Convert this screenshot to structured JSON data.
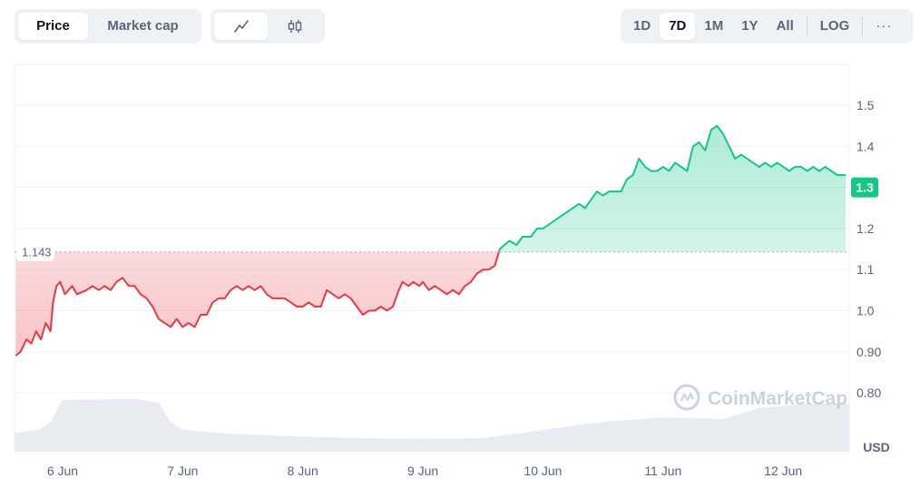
{
  "toolbar": {
    "metric_tabs": [
      {
        "label": "Price",
        "active": true
      },
      {
        "label": "Market cap",
        "active": false
      }
    ],
    "chart_type_tabs": [
      {
        "icon": "line-chart-icon",
        "active": true
      },
      {
        "icon": "candlestick-icon",
        "active": false
      }
    ],
    "range_tabs": [
      {
        "label": "1D",
        "active": false
      },
      {
        "label": "7D",
        "active": true
      },
      {
        "label": "1M",
        "active": false
      },
      {
        "label": "1Y",
        "active": false
      },
      {
        "label": "All",
        "active": false
      }
    ],
    "scale_label": "LOG",
    "more_label": "···"
  },
  "watermark": "CoinMarketCap",
  "chart_data": {
    "type": "area",
    "reference_value": 1.143,
    "reference_label": "1.143",
    "current_value": 1.3,
    "current_label": "1.3",
    "currency_label": "USD",
    "ylim": [
      0.7,
      1.6
    ],
    "y_ticks": [
      0.8,
      0.9,
      1.0,
      1.1,
      1.2,
      1.3,
      1.4,
      1.5
    ],
    "y_tick_labels": [
      "0.80",
      "0.90",
      "1.0",
      "1.1",
      "1.2",
      "1.3",
      "1.4",
      "1.5"
    ],
    "x_range": [
      5.6,
      12.55
    ],
    "x_ticks": [
      6,
      7,
      8,
      9,
      10,
      11,
      12
    ],
    "x_tick_labels": [
      "6 Jun",
      "7 Jun",
      "8 Jun",
      "9 Jun",
      "10 Jun",
      "11 Jun",
      "12 Jun"
    ],
    "colors": {
      "up": "#16c784",
      "down": "#ea3943",
      "volume": "#e8ebef",
      "grid": "#eff2f5"
    },
    "price": [
      [
        5.61,
        0.89
      ],
      [
        5.65,
        0.9
      ],
      [
        5.7,
        0.93
      ],
      [
        5.74,
        0.92
      ],
      [
        5.78,
        0.95
      ],
      [
        5.82,
        0.93
      ],
      [
        5.86,
        0.97
      ],
      [
        5.9,
        0.95
      ],
      [
        5.92,
        1.02
      ],
      [
        5.95,
        1.06
      ],
      [
        5.98,
        1.07
      ],
      [
        6.02,
        1.04
      ],
      [
        6.08,
        1.06
      ],
      [
        6.12,
        1.04
      ],
      [
        6.2,
        1.05
      ],
      [
        6.25,
        1.06
      ],
      [
        6.3,
        1.05
      ],
      [
        6.35,
        1.06
      ],
      [
        6.4,
        1.05
      ],
      [
        6.45,
        1.07
      ],
      [
        6.5,
        1.08
      ],
      [
        6.55,
        1.06
      ],
      [
        6.6,
        1.06
      ],
      [
        6.65,
        1.04
      ],
      [
        6.7,
        1.03
      ],
      [
        6.75,
        1.01
      ],
      [
        6.8,
        0.98
      ],
      [
        6.85,
        0.97
      ],
      [
        6.9,
        0.96
      ],
      [
        6.95,
        0.98
      ],
      [
        7.0,
        0.96
      ],
      [
        7.05,
        0.97
      ],
      [
        7.1,
        0.96
      ],
      [
        7.15,
        0.99
      ],
      [
        7.2,
        0.99
      ],
      [
        7.25,
        1.02
      ],
      [
        7.3,
        1.03
      ],
      [
        7.35,
        1.03
      ],
      [
        7.4,
        1.05
      ],
      [
        7.45,
        1.06
      ],
      [
        7.5,
        1.05
      ],
      [
        7.55,
        1.06
      ],
      [
        7.6,
        1.05
      ],
      [
        7.65,
        1.06
      ],
      [
        7.7,
        1.04
      ],
      [
        7.75,
        1.03
      ],
      [
        7.8,
        1.03
      ],
      [
        7.85,
        1.03
      ],
      [
        7.9,
        1.02
      ],
      [
        7.95,
        1.01
      ],
      [
        8.0,
        1.01
      ],
      [
        8.05,
        1.02
      ],
      [
        8.1,
        1.01
      ],
      [
        8.15,
        1.01
      ],
      [
        8.2,
        1.05
      ],
      [
        8.25,
        1.04
      ],
      [
        8.3,
        1.03
      ],
      [
        8.35,
        1.04
      ],
      [
        8.4,
        1.03
      ],
      [
        8.45,
        1.01
      ],
      [
        8.5,
        0.99
      ],
      [
        8.55,
        1.0
      ],
      [
        8.6,
        1.0
      ],
      [
        8.65,
        1.01
      ],
      [
        8.7,
        1.0
      ],
      [
        8.75,
        1.01
      ],
      [
        8.8,
        1.05
      ],
      [
        8.83,
        1.07
      ],
      [
        8.88,
        1.06
      ],
      [
        8.92,
        1.07
      ],
      [
        8.97,
        1.06
      ],
      [
        9.0,
        1.07
      ],
      [
        9.05,
        1.05
      ],
      [
        9.1,
        1.06
      ],
      [
        9.15,
        1.05
      ],
      [
        9.2,
        1.04
      ],
      [
        9.25,
        1.05
      ],
      [
        9.3,
        1.04
      ],
      [
        9.35,
        1.06
      ],
      [
        9.4,
        1.07
      ],
      [
        9.45,
        1.09
      ],
      [
        9.5,
        1.1
      ],
      [
        9.55,
        1.1
      ],
      [
        9.6,
        1.11
      ],
      [
        9.64,
        1.15
      ],
      [
        9.68,
        1.16
      ],
      [
        9.72,
        1.17
      ],
      [
        9.78,
        1.16
      ],
      [
        9.83,
        1.18
      ],
      [
        9.9,
        1.18
      ],
      [
        9.95,
        1.2
      ],
      [
        10.0,
        1.2
      ],
      [
        10.05,
        1.21
      ],
      [
        10.1,
        1.22
      ],
      [
        10.15,
        1.23
      ],
      [
        10.2,
        1.24
      ],
      [
        10.25,
        1.25
      ],
      [
        10.3,
        1.26
      ],
      [
        10.35,
        1.25
      ],
      [
        10.4,
        1.27
      ],
      [
        10.45,
        1.29
      ],
      [
        10.5,
        1.28
      ],
      [
        10.55,
        1.29
      ],
      [
        10.6,
        1.29
      ],
      [
        10.65,
        1.29
      ],
      [
        10.7,
        1.32
      ],
      [
        10.75,
        1.33
      ],
      [
        10.8,
        1.37
      ],
      [
        10.85,
        1.35
      ],
      [
        10.9,
        1.34
      ],
      [
        10.95,
        1.34
      ],
      [
        11.0,
        1.35
      ],
      [
        11.05,
        1.34
      ],
      [
        11.1,
        1.36
      ],
      [
        11.15,
        1.35
      ],
      [
        11.2,
        1.34
      ],
      [
        11.25,
        1.4
      ],
      [
        11.3,
        1.41
      ],
      [
        11.35,
        1.39
      ],
      [
        11.4,
        1.44
      ],
      [
        11.45,
        1.45
      ],
      [
        11.5,
        1.43
      ],
      [
        11.55,
        1.4
      ],
      [
        11.6,
        1.37
      ],
      [
        11.65,
        1.38
      ],
      [
        11.7,
        1.37
      ],
      [
        11.75,
        1.36
      ],
      [
        11.8,
        1.35
      ],
      [
        11.85,
        1.36
      ],
      [
        11.9,
        1.35
      ],
      [
        11.95,
        1.36
      ],
      [
        12.0,
        1.35
      ],
      [
        12.05,
        1.34
      ],
      [
        12.1,
        1.35
      ],
      [
        12.15,
        1.35
      ],
      [
        12.2,
        1.34
      ],
      [
        12.25,
        1.35
      ],
      [
        12.3,
        1.34
      ],
      [
        12.35,
        1.35
      ],
      [
        12.4,
        1.34
      ],
      [
        12.45,
        1.33
      ],
      [
        12.5,
        1.33
      ],
      [
        12.52,
        1.33
      ]
    ],
    "volume": [
      [
        5.6,
        0.35
      ],
      [
        5.8,
        0.4
      ],
      [
        5.9,
        0.55
      ],
      [
        6.0,
        0.95
      ],
      [
        6.3,
        0.96
      ],
      [
        6.6,
        0.97
      ],
      [
        6.8,
        0.9
      ],
      [
        6.9,
        0.55
      ],
      [
        7.0,
        0.4
      ],
      [
        7.4,
        0.33
      ],
      [
        8.0,
        0.28
      ],
      [
        8.5,
        0.25
      ],
      [
        9.0,
        0.24
      ],
      [
        9.5,
        0.25
      ],
      [
        10.0,
        0.4
      ],
      [
        10.5,
        0.55
      ],
      [
        11.0,
        0.63
      ],
      [
        11.5,
        0.6
      ],
      [
        11.8,
        0.8
      ],
      [
        12.2,
        0.88
      ],
      [
        12.55,
        0.88
      ]
    ]
  }
}
